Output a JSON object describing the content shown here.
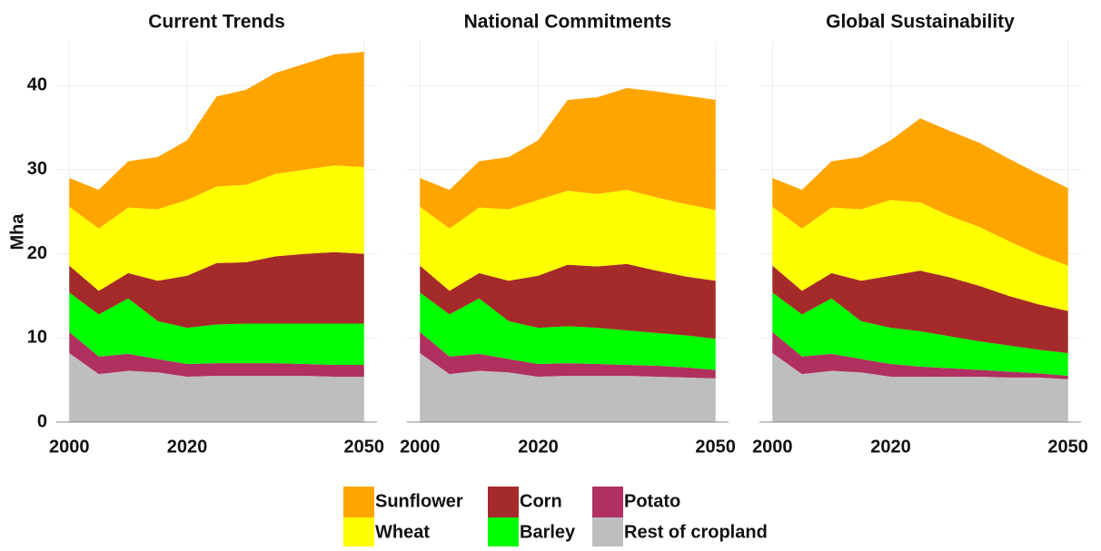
{
  "chart_data": [
    {
      "type": "area",
      "title": "Current Trends",
      "ylabel": "Mha",
      "x": [
        2000,
        2005,
        2010,
        2015,
        2020,
        2025,
        2030,
        2035,
        2040,
        2045,
        2050
      ],
      "xlim": [
        1997.8,
        2052.2
      ],
      "xticks": [
        2000,
        2020,
        2050
      ],
      "ylim": [
        0,
        45.2
      ],
      "yticks": [
        0,
        10,
        20,
        30,
        40
      ],
      "grid": true,
      "stacked": true,
      "series": [
        {
          "name": "Rest of cropland",
          "color": "#bebebe",
          "values": [
            8.2,
            5.7,
            6.1,
            5.9,
            5.4,
            5.5,
            5.5,
            5.5,
            5.5,
            5.4,
            5.4
          ]
        },
        {
          "name": "Potato",
          "color": "#b03060",
          "values": [
            2.5,
            2.1,
            2.0,
            1.6,
            1.5,
            1.5,
            1.5,
            1.5,
            1.4,
            1.4,
            1.4
          ]
        },
        {
          "name": "Barley",
          "color": "#00ff00",
          "values": [
            4.7,
            5.0,
            6.6,
            4.5,
            4.3,
            4.6,
            4.7,
            4.7,
            4.8,
            4.9,
            4.9
          ]
        },
        {
          "name": "Corn",
          "color": "#a52a2a",
          "values": [
            3.2,
            2.8,
            3.0,
            4.8,
            6.2,
            7.3,
            7.3,
            8.0,
            8.3,
            8.5,
            8.3
          ]
        },
        {
          "name": "Wheat",
          "color": "#ffff00",
          "values": [
            7.0,
            7.4,
            7.8,
            8.5,
            9.0,
            9.1,
            9.2,
            9.8,
            10.0,
            10.3,
            10.3
          ]
        },
        {
          "name": "Sunflower",
          "color": "#ffa500",
          "values": [
            3.4,
            4.6,
            5.5,
            6.2,
            7.1,
            10.7,
            11.3,
            12.0,
            12.6,
            13.2,
            13.7
          ]
        }
      ]
    },
    {
      "type": "area",
      "title": "National Commitments",
      "x": [
        2000,
        2005,
        2010,
        2015,
        2020,
        2025,
        2030,
        2035,
        2040,
        2045,
        2050
      ],
      "xlim": [
        1997.8,
        2052.2
      ],
      "xticks": [
        2000,
        2020,
        2050
      ],
      "ylim": [
        0,
        45.2
      ],
      "yticks": [
        0,
        10,
        20,
        30,
        40
      ],
      "grid": true,
      "stacked": true,
      "series": [
        {
          "name": "Rest of cropland",
          "color": "#bebebe",
          "values": [
            8.2,
            5.7,
            6.1,
            5.9,
            5.4,
            5.5,
            5.5,
            5.5,
            5.4,
            5.3,
            5.2
          ]
        },
        {
          "name": "Potato",
          "color": "#b03060",
          "values": [
            2.5,
            2.1,
            2.0,
            1.6,
            1.5,
            1.5,
            1.4,
            1.3,
            1.3,
            1.2,
            1.0
          ]
        },
        {
          "name": "Barley",
          "color": "#00ff00",
          "values": [
            4.7,
            5.0,
            6.6,
            4.5,
            4.3,
            4.4,
            4.3,
            4.1,
            3.9,
            3.8,
            3.7
          ]
        },
        {
          "name": "Corn",
          "color": "#a52a2a",
          "values": [
            3.2,
            2.8,
            3.0,
            4.8,
            6.2,
            7.3,
            7.3,
            7.9,
            7.4,
            7.0,
            6.9
          ]
        },
        {
          "name": "Wheat",
          "color": "#ffff00",
          "values": [
            7.0,
            7.4,
            7.8,
            8.5,
            9.0,
            8.8,
            8.6,
            8.8,
            8.7,
            8.6,
            8.4
          ]
        },
        {
          "name": "Sunflower",
          "color": "#ffa500",
          "values": [
            3.4,
            4.6,
            5.5,
            6.2,
            7.1,
            10.8,
            11.5,
            12.1,
            12.6,
            12.9,
            13.1
          ]
        }
      ]
    },
    {
      "type": "area",
      "title": "Global Sustainability",
      "x": [
        2000,
        2005,
        2010,
        2015,
        2020,
        2025,
        2030,
        2035,
        2040,
        2045,
        2050
      ],
      "xlim": [
        1997.8,
        2052.2
      ],
      "xticks": [
        2000,
        2020,
        2050
      ],
      "ylim": [
        0,
        45.2
      ],
      "yticks": [
        0,
        10,
        20,
        30,
        40
      ],
      "grid": true,
      "stacked": true,
      "series": [
        {
          "name": "Rest of cropland",
          "color": "#bebebe",
          "values": [
            8.2,
            5.7,
            6.1,
            5.9,
            5.4,
            5.4,
            5.4,
            5.4,
            5.3,
            5.3,
            5.1
          ]
        },
        {
          "name": "Potato",
          "color": "#b03060",
          "values": [
            2.5,
            2.1,
            2.0,
            1.6,
            1.5,
            1.2,
            1.0,
            0.8,
            0.7,
            0.5,
            0.4
          ]
        },
        {
          "name": "Barley",
          "color": "#00ff00",
          "values": [
            4.7,
            5.0,
            6.6,
            4.5,
            4.3,
            4.2,
            3.8,
            3.4,
            3.1,
            2.8,
            2.7
          ]
        },
        {
          "name": "Corn",
          "color": "#a52a2a",
          "values": [
            3.2,
            2.8,
            3.0,
            4.8,
            6.2,
            7.2,
            7.0,
            6.6,
            5.9,
            5.4,
            5.0
          ]
        },
        {
          "name": "Wheat",
          "color": "#ffff00",
          "values": [
            7.0,
            7.4,
            7.8,
            8.5,
            9.0,
            8.1,
            7.3,
            7.0,
            6.5,
            5.9,
            5.4
          ]
        },
        {
          "name": "Sunflower",
          "color": "#ffa500",
          "values": [
            3.4,
            4.6,
            5.5,
            6.2,
            7.1,
            10.0,
            10.1,
            10.0,
            9.8,
            9.6,
            9.2
          ]
        }
      ]
    }
  ]
}
